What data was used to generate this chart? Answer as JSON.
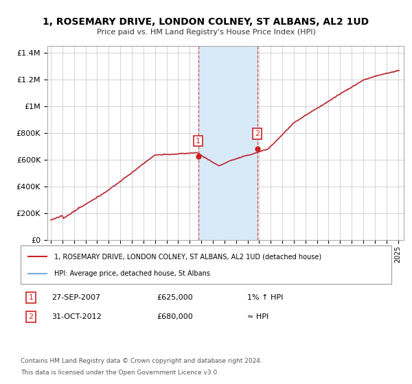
{
  "title": "1, ROSEMARY DRIVE, LONDON COLNEY, ST ALBANS, AL2 1UD",
  "subtitle": "Price paid vs. HM Land Registry's House Price Index (HPI)",
  "legend_line1": "1, ROSEMARY DRIVE, LONDON COLNEY, ST ALBANS, AL2 1UD (detached house)",
  "legend_line2": "HPI: Average price, detached house, St Albans",
  "sale1_date": "27-SEP-2007",
  "sale1_price": 625000,
  "sale1_label": "1",
  "sale1_x": 2007.74,
  "sale2_date": "31-OCT-2012",
  "sale2_price": 680000,
  "sale2_label": "2",
  "sale2_x": 2012.83,
  "footer_line1": "Contains HM Land Registry data © Crown copyright and database right 2024.",
  "footer_line2": "This data is licensed under the Open Government Licence v3.0.",
  "hpi_color": "#7aaadd",
  "price_color": "#cc2222",
  "shade_color": "#d8eaf8",
  "ylim": [
    0,
    1450000
  ],
  "xlim_start": 1994.7,
  "xlim_end": 2025.5,
  "yticks": [
    0,
    200000,
    400000,
    600000,
    800000,
    1000000,
    1200000,
    1400000
  ],
  "ytick_labels": [
    "£0",
    "£200K",
    "£400K",
    "£600K",
    "£800K",
    "£1M",
    "£1.2M",
    "£1.4M"
  ]
}
